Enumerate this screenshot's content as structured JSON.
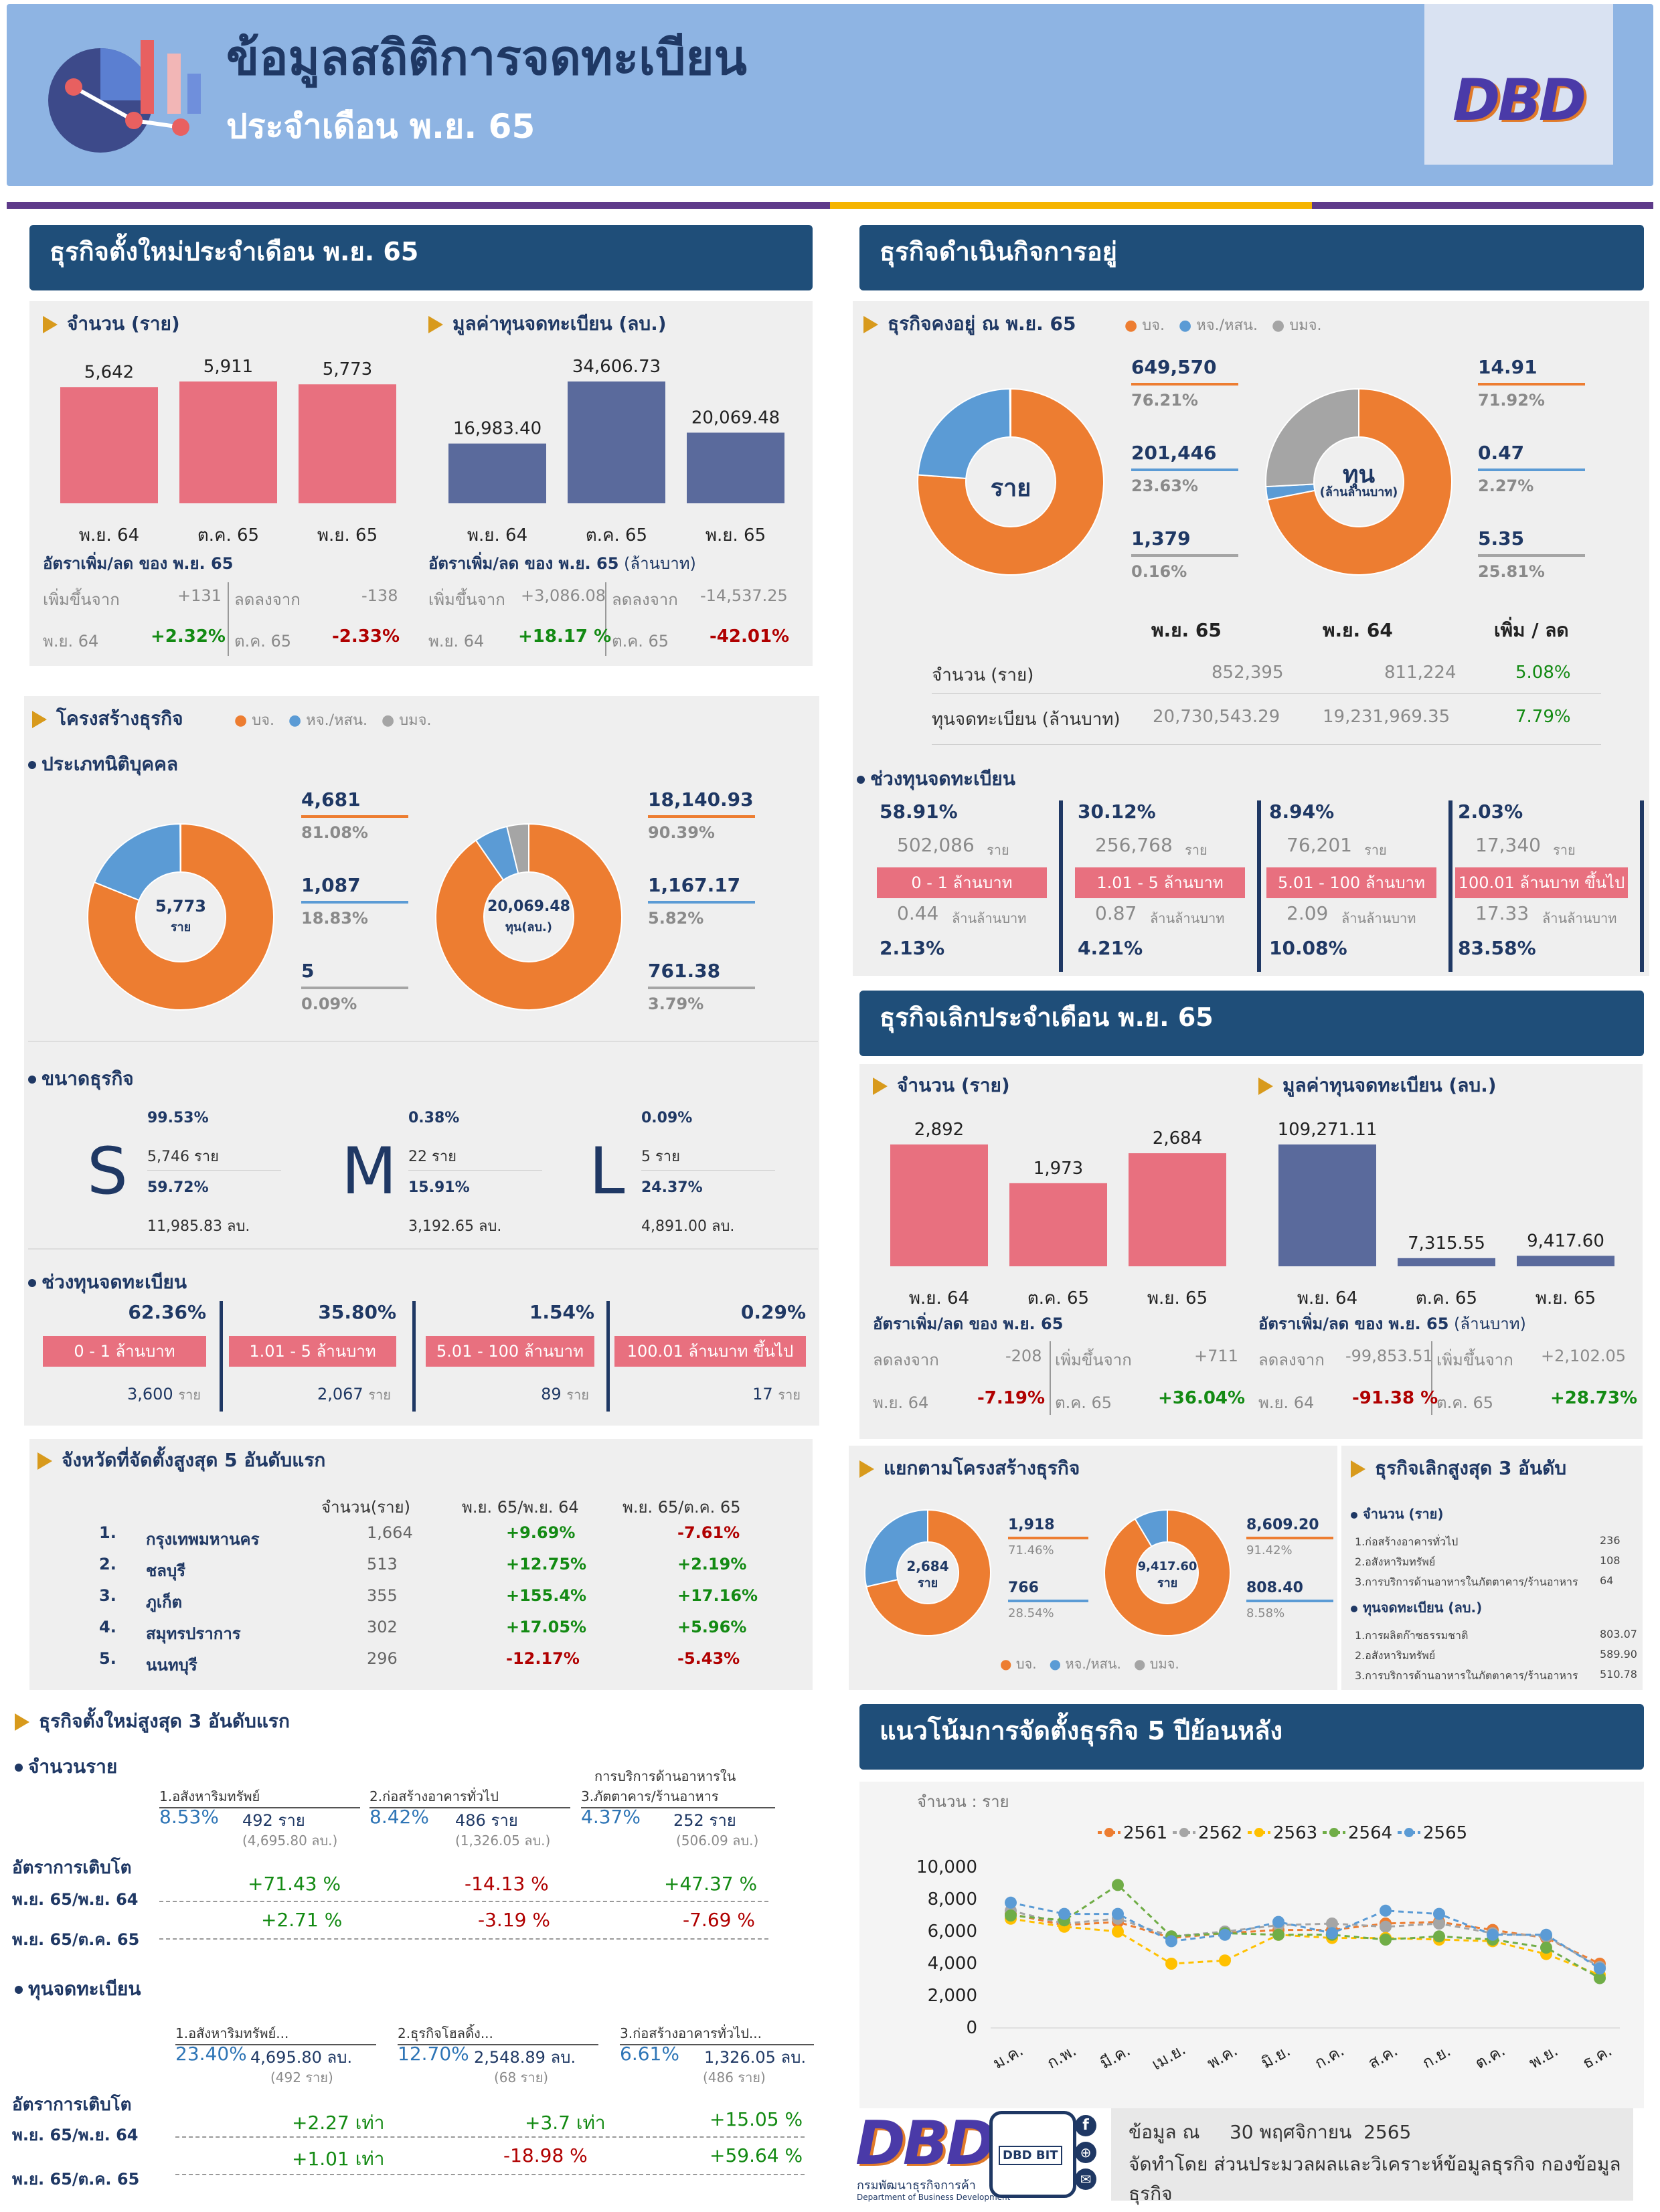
{
  "header": {
    "title": "ข้อมูลสถิติการจดทะเบียน",
    "subtitle": "ประจำเดือน พ.ย. 65",
    "logo": "DBD"
  },
  "new_biz": {
    "title": "ธุรกิจตั้งใหม่ประจำเดือน พ.ย. 65",
    "count_title": "จำนวน (ราย)",
    "capital_title": "มูลค่าทุนจดทะเบียน (ลบ.)",
    "count_rate_title": "อัตราเพิ่ม/ลด ของ พ.ย. 65",
    "capital_rate_title": "อัตราเพิ่ม/ลด ของ พ.ย. 65",
    "capital_rate_unit": "(ล้านบาท)",
    "count_inc_label": "เพิ่มขึ้นจาก",
    "count_inc_value": "+131",
    "count_dec_label": "ลดลงจาก",
    "count_dec_value": "-138",
    "count_inc_period": "พ.ย. 64",
    "count_inc_pct": "+2.32%",
    "count_dec_period": "ต.ค. 65",
    "count_dec_pct": "-2.33%",
    "cap_inc_label": "เพิ่มขึ้นจาก",
    "cap_inc_value": "+3,086.08",
    "cap_dec_label": "ลดลงจาก",
    "cap_dec_value": "-14,537.25",
    "cap_inc_period": "พ.ย. 64",
    "cap_inc_pct": "+18.17 %",
    "cap_dec_period": "ต.ค. 65",
    "cap_dec_pct": "-42.01%"
  },
  "structure": {
    "title": "โครงสร้างธุรกิจ",
    "legend": [
      "บจ.",
      "หจ./หสน.",
      "บมจ."
    ],
    "type_title": "ประเภทนิติบุคคล",
    "count_center": "5,773",
    "count_center_unit": "ราย",
    "cap_center": "20,069.48",
    "cap_center_unit": "ทุน(ลบ.)",
    "count_items": [
      {
        "value": "4,681",
        "pct": "81.08%"
      },
      {
        "value": "1,087",
        "pct": "18.83%"
      },
      {
        "value": "5",
        "pct": "0.09%"
      }
    ],
    "cap_items": [
      {
        "value": "18,140.93",
        "pct": "90.39%"
      },
      {
        "value": "1,167.17",
        "pct": "5.82%"
      },
      {
        "value": "761.38",
        "pct": "3.79%"
      }
    ],
    "size_title": "ขนาดธุรกิจ",
    "sizes": [
      {
        "letter": "S",
        "pct1": "99.53%",
        "count": "5,746 ราย",
        "pct2": "59.72%",
        "cap": "11,985.83 ลบ."
      },
      {
        "letter": "M",
        "pct1": "0.38%",
        "count": "22 ราย",
        "pct2": "15.91%",
        "cap": "3,192.65 ลบ."
      },
      {
        "letter": "L",
        "pct1": "0.09%",
        "count": "5 ราย",
        "pct2": "24.37%",
        "cap": "4,891.00 ลบ."
      }
    ],
    "range_title": "ช่วงทุนจดทะเบียน",
    "ranges": [
      {
        "pct": "62.36%",
        "label": "0 - 1 ล้านบาท",
        "count": "3,600",
        "unit": "ราย"
      },
      {
        "pct": "35.80%",
        "label": "1.01 - 5 ล้านบาท",
        "count": "2,067",
        "unit": "ราย"
      },
      {
        "pct": "1.54%",
        "label": "5.01 - 100 ล้านบาท",
        "count": "89",
        "unit": "ราย"
      },
      {
        "pct": "0.29%",
        "label": "100.01 ล้านบาท ขึ้นไป",
        "count": "17",
        "unit": "ราย"
      }
    ]
  },
  "provinces": {
    "title": "จังหวัดที่จัดตั้งสูงสุด 5 อันดับแรก",
    "headers": [
      "จำนวน(ราย)",
      "พ.ย. 65/พ.ย. 64",
      "พ.ย. 65/ต.ค. 65"
    ],
    "rows": [
      {
        "rank": "1.",
        "name": "กรุงเทพมหานคร",
        "count": "1,664",
        "yoy": "+9.69%",
        "mom": "-7.61%"
      },
      {
        "rank": "2.",
        "name": "ชลบุรี",
        "count": "513",
        "yoy": "+12.75%",
        "mom": "+2.19%"
      },
      {
        "rank": "3.",
        "name": "ภูเก็ต",
        "count": "355",
        "yoy": "+155.4%",
        "mom": "+17.16%"
      },
      {
        "rank": "4.",
        "name": "สมุทรปราการ",
        "count": "302",
        "yoy": "+17.05%",
        "mom": "+5.96%"
      },
      {
        "rank": "5.",
        "name": "นนทบุรี",
        "count": "296",
        "yoy": "-12.17%",
        "mom": "-5.43%"
      }
    ]
  },
  "top3_new": {
    "title": "ธุรกิจตั้งใหม่สูงสุด 3 อันดับแรก",
    "count_title": "จำนวนราย",
    "growth_label": "อัตราการเติบโต",
    "period1": "พ.ย. 65/พ.ย. 64",
    "period2": "พ.ย. 65/ต.ค. 65",
    "count_items": [
      {
        "name": "1.อสังหาริมทรัพย์",
        "pct": "8.53%",
        "value": "492  ราย",
        "cap": "(4,695.80  ลบ.)",
        "g1": "+71.43 %",
        "g2": "+2.71 %"
      },
      {
        "name": "2.ก่อสร้างอาคารทั่วไป",
        "pct": "8.42%",
        "value": "486  ราย",
        "cap": "(1,326.05  ลบ.)",
        "g1": "-14.13 %",
        "g2": "-3.19 %"
      },
      {
        "name_pre": "การบริการด้านอาหารใน",
        "name": "3.ภัตตาคาร/ร้านอาหาร",
        "pct": "4.37%",
        "value": "252  ราย",
        "cap": "(506.09  ลบ.)",
        "g1": "+47.37 %",
        "g2": "-7.69 %"
      }
    ],
    "cap_title": "ทุนจดทะเบียน",
    "cap_items": [
      {
        "name": "1.อสังหาริมทรัพย์...",
        "pct": "23.40%",
        "value": "4,695.80  ลบ.",
        "count": "(492  ราย)",
        "g1": "+2.27 เท่า",
        "g2": "+1.01 เท่า"
      },
      {
        "name": "2.ธุรกิจโฮลดิ้ง...",
        "pct": "12.70%",
        "value": "2,548.89  ลบ.",
        "count": "(68  ราย)",
        "g1": "+3.7 เท่า",
        "g2": "-18.98 %"
      },
      {
        "name": "3.ก่อสร้างอาคารทั่วไป...",
        "pct": "6.61%",
        "value": "1,326.05  ลบ.",
        "count": "(486  ราย)",
        "g1": "+15.05 %",
        "g2": "+59.64 %"
      }
    ]
  },
  "operating": {
    "title": "ธุรกิจดำเนินกิจการอยู่",
    "sub": "ธุรกิจคงอยู่ ณ พ.ย. 65",
    "legend": [
      "บจ.",
      "หจ./หสน.",
      "บมจ."
    ],
    "donut1_center": "ราย",
    "donut2_center": "ทุน",
    "donut2_center_sub": "(ล้านล้านบาท)",
    "count_items": [
      {
        "value": "649,570",
        "pct": "76.21%"
      },
      {
        "value": "201,446",
        "pct": "23.63%"
      },
      {
        "value": "1,379",
        "pct": "0.16%"
      }
    ],
    "cap_items": [
      {
        "value": "14.91",
        "pct": "71.92%"
      },
      {
        "value": "0.47",
        "pct": "2.27%"
      },
      {
        "value": "5.35",
        "pct": "25.81%"
      }
    ],
    "cols": [
      "พ.ย. 65",
      "พ.ย. 64",
      "เพิ่ม / ลด"
    ],
    "rows": [
      {
        "label": "จำนวน (ราย)",
        "v1": "852,395",
        "v2": "811,224",
        "chg": "5.08%"
      },
      {
        "label": "ทุนจดทะเบียน (ล้านบาท)",
        "v1": "20,730,543.29",
        "v2": "19,231,969.35",
        "chg": "7.79%"
      }
    ],
    "range_title": "ช่วงทุนจดทะเบียน",
    "ranges": [
      {
        "pct": "58.91%",
        "count": "502,086",
        "label": "0 - 1 ล้านบาท",
        "cap": "0.44",
        "cap_pct": "2.13%"
      },
      {
        "pct": "30.12%",
        "count": "256,768",
        "label": "1.01 - 5 ล้านบาท",
        "cap": "0.87",
        "cap_pct": "4.21%"
      },
      {
        "pct": "8.94%",
        "count": "76,201",
        "label": "5.01 - 100 ล้านบาท",
        "cap": "2.09",
        "cap_pct": "10.08%"
      },
      {
        "pct": "2.03%",
        "count": "17,340",
        "label": "100.01 ล้านบาท ขึ้นไป",
        "cap": "17.33",
        "cap_pct": "83.58%"
      }
    ],
    "unit_rai": "ราย",
    "unit_cap": "ล้านล้านบาท"
  },
  "closed": {
    "title": "ธุรกิจเลิกประจำเดือน พ.ย. 65",
    "count_title": "จำนวน (ราย)",
    "capital_title": "มูลค่าทุนจดทะเบียน (ลบ.)",
    "count_rate_title": "อัตราเพิ่ม/ลด ของ พ.ย. 65",
    "capital_rate_title": "อัตราเพิ่ม/ลด ของ พ.ย. 65",
    "capital_rate_unit": "(ล้านบาท)",
    "c_dec_label": "ลดลงจาก",
    "c_dec_value": "-208",
    "c_inc_label": "เพิ่มขึ้นจาก",
    "c_inc_value": "+711",
    "c_p1": "พ.ย. 64",
    "c_p1_pct": "-7.19%",
    "c_p2": "ต.ค. 65",
    "c_p2_pct": "+36.04%",
    "k_dec_label": "ลดลงจาก",
    "k_dec_value": "-99,853.51",
    "k_inc_label": "เพิ่มขึ้นจาก",
    "k_inc_value": "+2,102.05",
    "k_p1": "พ.ย. 64",
    "k_p1_pct": "-91.38 %",
    "k_p2": "ต.ค. 65",
    "k_p2_pct": "+28.73%",
    "struct_title": "แยกตามโครงสร้างธุรกิจ",
    "d1_center": "2,684",
    "d1_unit": "ราย",
    "d2_center": "9,417.60",
    "d2_unit": "ราย",
    "d1_items": [
      {
        "value": "1,918",
        "pct": "71.46%"
      },
      {
        "value": "766",
        "pct": "28.54%"
      }
    ],
    "d2_items": [
      {
        "value": "8,609.20",
        "pct": "91.42%"
      },
      {
        "value": "808.40",
        "pct": "8.58%"
      }
    ],
    "legend": [
      "บจ.",
      "หจ./หสน.",
      "บมจ."
    ],
    "top3_title": "ธุรกิจเลิกสูงสุด 3 อันดับ",
    "top3_count_title": "จำนวน (ราย)",
    "top3_count": [
      {
        "name": "1.ก่อสร้างอาคารทั่วไป",
        "value": "236"
      },
      {
        "name": "2.อสังหาริมทรัพย์",
        "value": "108"
      },
      {
        "name": "3.การบริการด้านอาหารในภัตตาคาร/ร้านอาหาร",
        "value": "64"
      }
    ],
    "top3_cap_title": "ทุนจดทะเบียน (ลบ.)",
    "top3_cap": [
      {
        "name": "1.การผลิตก๊าซธรรมชาติ",
        "value": "803.07"
      },
      {
        "name": "2.อสังหาริมทรัพย์",
        "value": "589.90"
      },
      {
        "name": "3.การบริการด้านอาหารในภัตตาคาร/ร้านอาหาร",
        "value": "510.78"
      }
    ]
  },
  "trend": {
    "title": "แนวโน้มการจัดตั้งธุรกิจ 5 ปีย้อนหลัง"
  },
  "footer": {
    "logo": "DBD",
    "logo_sub": "กรมพัฒนาธุรกิจการค้า",
    "logo_sub2": "Department of Business Development",
    "bit": "DBD BIT",
    "data_date": "ข้อมูล ณ     30 พฤศจิกายน  2565",
    "made_by": "จัดทำโดย ส่วนประมวลผลและวิเคราะห์ข้อมูลธุรกิจ กองข้อมูลธุรกิจ"
  },
  "chart_data": [
    {
      "type": "bar",
      "title": "จำนวน (ราย)",
      "categories": [
        "พ.ย. 64",
        "ต.ค. 65",
        "พ.ย. 65"
      ],
      "values": [
        5642,
        5911,
        5773
      ],
      "labels": [
        "5,642",
        "5,911",
        "5,773"
      ],
      "color": "#e8707f"
    },
    {
      "type": "bar",
      "title": "มูลค่าทุนจดทะเบียน (ลบ.)",
      "categories": [
        "พ.ย. 64",
        "ต.ค. 65",
        "พ.ย. 65"
      ],
      "values": [
        16983.4,
        34606.73,
        20069.48
      ],
      "labels": [
        "16,983.40",
        "34,606.73",
        "20,069.48"
      ],
      "color": "#5a6a9c"
    },
    {
      "type": "bar",
      "title": "จำนวน (ราย)",
      "categories": [
        "พ.ย. 64",
        "ต.ค. 65",
        "พ.ย. 65"
      ],
      "values": [
        2892,
        1973,
        2684
      ],
      "labels": [
        "2,892",
        "1,973",
        "2,684"
      ],
      "color": "#e8707f"
    },
    {
      "type": "bar",
      "title": "มูลค่าทุนจดทะเบียน (ลบ.)",
      "categories": [
        "พ.ย. 64",
        "ต.ค. 65",
        "พ.ย. 65"
      ],
      "values": [
        109271.11,
        7315.55,
        9417.6
      ],
      "labels": [
        "109,271.11",
        "7,315.55",
        "9,417.60"
      ],
      "color": "#5a6a9c"
    },
    {
      "type": "pie",
      "categories": [
        "บจ.",
        "หจ./หสน.",
        "บมจ."
      ],
      "values": [
        81.08,
        18.83,
        0.09
      ],
      "colors": [
        "#ed7d31",
        "#5b9bd5",
        "#a5a5a5"
      ]
    },
    {
      "type": "pie",
      "categories": [
        "บจ.",
        "หจ./หสน.",
        "บมจ."
      ],
      "values": [
        90.39,
        5.82,
        3.79
      ],
      "colors": [
        "#ed7d31",
        "#5b9bd5",
        "#a5a5a5"
      ]
    },
    {
      "type": "pie",
      "categories": [
        "บจ.",
        "หจ./หสน.",
        "บมจ."
      ],
      "values": [
        76.21,
        23.63,
        0.16
      ],
      "colors": [
        "#ed7d31",
        "#5b9bd5",
        "#a5a5a5"
      ]
    },
    {
      "type": "pie",
      "categories": [
        "บจ.",
        "หจ./หสน.",
        "บมจ."
      ],
      "values": [
        71.92,
        2.27,
        25.81
      ],
      "colors": [
        "#ed7d31",
        "#5b9bd5",
        "#a5a5a5"
      ]
    },
    {
      "type": "pie",
      "categories": [
        "บจ.",
        "หจ./หสน."
      ],
      "values": [
        71.46,
        28.54
      ],
      "colors": [
        "#ed7d31",
        "#5b9bd5"
      ]
    },
    {
      "type": "pie",
      "categories": [
        "บจ.",
        "หจ./หสน."
      ],
      "values": [
        91.42,
        8.58
      ],
      "colors": [
        "#ed7d31",
        "#5b9bd5"
      ]
    },
    {
      "type": "line",
      "ylabel": "จำนวน : ราย",
      "categories": [
        "ม.ค.",
        "ก.พ.",
        "มี.ค.",
        "เม.ย.",
        "พ.ค.",
        "มิ.ย.",
        "ก.ค.",
        "ส.ค.",
        "ก.ย.",
        "ต.ค.",
        "พ.ย.",
        "ธ.ค."
      ],
      "ylim": [
        0,
        10000
      ],
      "yticks": [
        "10,000",
        "8,000",
        "6,000",
        "4,000",
        "2,000",
        "0"
      ],
      "series": [
        {
          "name": "2561",
          "color": "#ed7d31",
          "values": [
            7100,
            6400,
            6600,
            5600,
            5900,
            6100,
            6100,
            6500,
            6600,
            6100,
            5600,
            4000
          ]
        },
        {
          "name": "2562",
          "color": "#a5a5a5",
          "values": [
            7300,
            6500,
            6800,
            5700,
            6000,
            6400,
            6500,
            6300,
            6500,
            5900,
            5700,
            3800
          ]
        },
        {
          "name": "2563",
          "color": "#ffc000",
          "values": [
            6800,
            6300,
            6000,
            4000,
            4200,
            5800,
            5600,
            5600,
            5500,
            5400,
            4600,
            3300
          ]
        },
        {
          "name": "2564",
          "color": "#70ad47",
          "values": [
            7000,
            6700,
            8900,
            5700,
            5900,
            5800,
            5800,
            5500,
            5700,
            5500,
            5000,
            3100
          ]
        },
        {
          "name": "2565",
          "color": "#5b9bd5",
          "values": [
            7800,
            7100,
            7100,
            5400,
            5800,
            6600,
            5900,
            7300,
            7100,
            5800,
            5800,
            3700
          ]
        }
      ]
    }
  ]
}
